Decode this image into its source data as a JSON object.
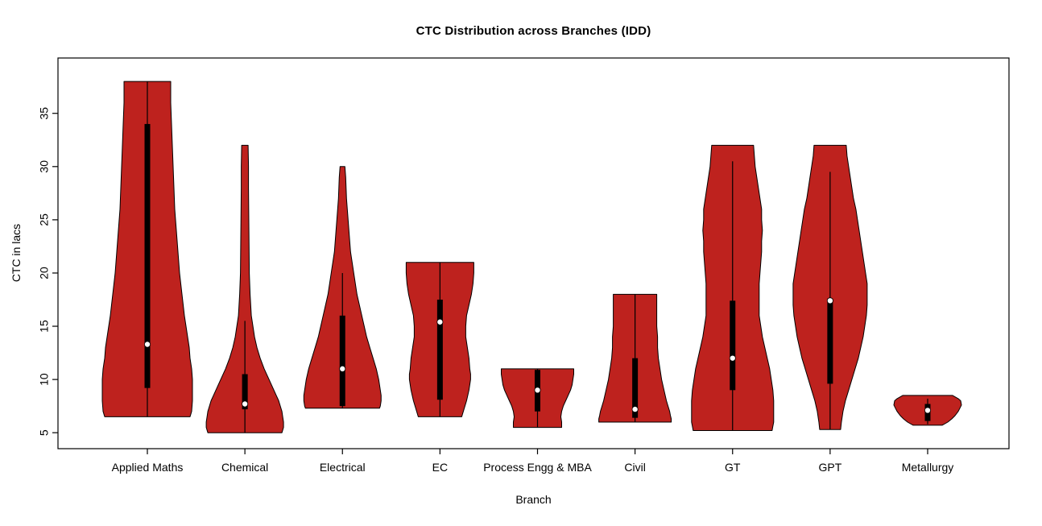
{
  "chart_data": {
    "type": "violin",
    "title": "CTC Distribution across Branches (IDD)",
    "xlabel": "Branch",
    "ylabel": "CTC in lacs",
    "ylim": [
      3.5,
      40.2
    ],
    "yticks": [
      5,
      10,
      15,
      20,
      25,
      30,
      35
    ],
    "grid": false,
    "violin_fill": "#BE221E",
    "categories": [
      "Applied Maths",
      "Chemical",
      "Electrical",
      "EC",
      "Process Engg & MBA",
      "Civil",
      "GT",
      "GPT",
      "Metallurgy"
    ],
    "violins": [
      {
        "category": "Applied Maths",
        "min": 6.5,
        "max": 38,
        "q1": 9.2,
        "q3": 34,
        "median": 13.3,
        "whisker_low": 6.5,
        "whisker_high": 38,
        "profile": [
          [
            6.5,
            53
          ],
          [
            7,
            55
          ],
          [
            8,
            56
          ],
          [
            9,
            56
          ],
          [
            10,
            56
          ],
          [
            11,
            55
          ],
          [
            12,
            53
          ],
          [
            13,
            52
          ],
          [
            14,
            50
          ],
          [
            15,
            48
          ],
          [
            16,
            46
          ],
          [
            18,
            43
          ],
          [
            20,
            40
          ],
          [
            22,
            38
          ],
          [
            24,
            36
          ],
          [
            26,
            34
          ],
          [
            28,
            33
          ],
          [
            30,
            32
          ],
          [
            32,
            31
          ],
          [
            34,
            30
          ],
          [
            36,
            29
          ],
          [
            38,
            29
          ]
        ]
      },
      {
        "category": "Chemical",
        "min": 5,
        "max": 32,
        "q1": 7.2,
        "q3": 10.5,
        "median": 7.7,
        "whisker_low": 5,
        "whisker_high": 15.5,
        "profile": [
          [
            5,
            46
          ],
          [
            5.5,
            48
          ],
          [
            6,
            48
          ],
          [
            6.5,
            47
          ],
          [
            7,
            46
          ],
          [
            7.5,
            44
          ],
          [
            8,
            42
          ],
          [
            8.5,
            39
          ],
          [
            9,
            36
          ],
          [
            9.5,
            33
          ],
          [
            10,
            30
          ],
          [
            11,
            24
          ],
          [
            12,
            19
          ],
          [
            13,
            15
          ],
          [
            14,
            12
          ],
          [
            15,
            10
          ],
          [
            16,
            8
          ],
          [
            18,
            6.5
          ],
          [
            20,
            5.5
          ],
          [
            24,
            5
          ],
          [
            28,
            4.5
          ],
          [
            30,
            4.5
          ],
          [
            32,
            4
          ]
        ]
      },
      {
        "category": "Electrical",
        "min": 7.3,
        "max": 30,
        "q1": 7.5,
        "q3": 16,
        "median": 11,
        "whisker_low": 7.3,
        "whisker_high": 20,
        "profile": [
          [
            7.3,
            46
          ],
          [
            7.5,
            47
          ],
          [
            8,
            48
          ],
          [
            8.5,
            48
          ],
          [
            9,
            47
          ],
          [
            10,
            45
          ],
          [
            11,
            42
          ],
          [
            12,
            38
          ],
          [
            13,
            34
          ],
          [
            14,
            30
          ],
          [
            15,
            27
          ],
          [
            16,
            24
          ],
          [
            17,
            21
          ],
          [
            18,
            18
          ],
          [
            19,
            16
          ],
          [
            20,
            14
          ],
          [
            21,
            12
          ],
          [
            22,
            10
          ],
          [
            23,
            9
          ],
          [
            24,
            8
          ],
          [
            25,
            7
          ],
          [
            26,
            6
          ],
          [
            27,
            5
          ],
          [
            28,
            4.5
          ],
          [
            29,
            4
          ],
          [
            30,
            3
          ]
        ]
      },
      {
        "category": "EC",
        "min": 6.5,
        "max": 21,
        "q1": 8.1,
        "q3": 17.5,
        "median": 15.4,
        "whisker_low": 6.5,
        "whisker_high": 21,
        "profile": [
          [
            6.5,
            27
          ],
          [
            7,
            29
          ],
          [
            8,
            33
          ],
          [
            9,
            36
          ],
          [
            10,
            38
          ],
          [
            10.5,
            38
          ],
          [
            11,
            37
          ],
          [
            12,
            36
          ],
          [
            13,
            34
          ],
          [
            14,
            32
          ],
          [
            15,
            32
          ],
          [
            16,
            33
          ],
          [
            17,
            36
          ],
          [
            18,
            39
          ],
          [
            19,
            41
          ],
          [
            20,
            42
          ],
          [
            21,
            42
          ]
        ]
      },
      {
        "category": "Process Engg & MBA",
        "min": 5.5,
        "max": 11,
        "q1": 7,
        "q3": 10.9,
        "median": 9,
        "whisker_low": 5.5,
        "whisker_high": 11,
        "profile": [
          [
            5.5,
            30
          ],
          [
            6,
            30
          ],
          [
            6.5,
            29
          ],
          [
            7,
            30
          ],
          [
            7.5,
            32
          ],
          [
            8,
            35
          ],
          [
            8.5,
            38
          ],
          [
            9,
            41
          ],
          [
            9.5,
            43
          ],
          [
            10,
            44
          ],
          [
            10.5,
            45
          ],
          [
            11,
            45
          ]
        ]
      },
      {
        "category": "Civil",
        "min": 6,
        "max": 18,
        "q1": 6.4,
        "q3": 12,
        "median": 7.2,
        "whisker_low": 6,
        "whisker_high": 18,
        "profile": [
          [
            6,
            45
          ],
          [
            6.3,
            45
          ],
          [
            6.6,
            44
          ],
          [
            7,
            43
          ],
          [
            7.5,
            41
          ],
          [
            8,
            39
          ],
          [
            9,
            36
          ],
          [
            10,
            33
          ],
          [
            11,
            31
          ],
          [
            12,
            29
          ],
          [
            13,
            28
          ],
          [
            14,
            28
          ],
          [
            15,
            27
          ],
          [
            16,
            27
          ],
          [
            17,
            27
          ],
          [
            18,
            27
          ]
        ]
      },
      {
        "category": "GT",
        "min": 5.2,
        "max": 32,
        "q1": 9,
        "q3": 17.4,
        "median": 12,
        "whisker_low": 5.2,
        "whisker_high": 30.5,
        "profile": [
          [
            5.2,
            49
          ],
          [
            5.6,
            50
          ],
          [
            6,
            51
          ],
          [
            7,
            51
          ],
          [
            8,
            51
          ],
          [
            9,
            50
          ],
          [
            10,
            48
          ],
          [
            11,
            46
          ],
          [
            12,
            43
          ],
          [
            13,
            40
          ],
          [
            14,
            37
          ],
          [
            15,
            35
          ],
          [
            16,
            33
          ],
          [
            17,
            33
          ],
          [
            18,
            33
          ],
          [
            19,
            33
          ],
          [
            20,
            34
          ],
          [
            21,
            35
          ],
          [
            22,
            36
          ],
          [
            23,
            36
          ],
          [
            24,
            37
          ],
          [
            25,
            36
          ],
          [
            26,
            36
          ],
          [
            27,
            34
          ],
          [
            28,
            32
          ],
          [
            29,
            30
          ],
          [
            30,
            28
          ],
          [
            31,
            27
          ],
          [
            32,
            26
          ]
        ]
      },
      {
        "category": "GPT",
        "min": 5.3,
        "max": 32,
        "q1": 9.6,
        "q3": 17.6,
        "median": 17.4,
        "whisker_low": 5.3,
        "whisker_high": 29.5,
        "profile": [
          [
            5.3,
            13
          ],
          [
            6,
            14
          ],
          [
            7,
            16
          ],
          [
            8,
            19
          ],
          [
            9,
            23
          ],
          [
            10,
            27
          ],
          [
            11,
            31
          ],
          [
            12,
            35
          ],
          [
            13,
            38
          ],
          [
            14,
            41
          ],
          [
            15,
            43
          ],
          [
            16,
            45
          ],
          [
            17,
            46
          ],
          [
            18,
            46
          ],
          [
            19,
            46
          ],
          [
            20,
            44
          ],
          [
            21,
            42
          ],
          [
            22,
            40
          ],
          [
            23,
            38
          ],
          [
            24,
            36
          ],
          [
            25,
            34
          ],
          [
            26,
            32
          ],
          [
            27,
            29
          ],
          [
            28,
            27
          ],
          [
            29,
            25
          ],
          [
            30,
            23
          ],
          [
            31,
            21
          ],
          [
            32,
            20
          ]
        ]
      },
      {
        "category": "Metallurgy",
        "min": 5.7,
        "max": 8.5,
        "q1": 6.1,
        "q3": 7.7,
        "median": 7.1,
        "whisker_low": 5.8,
        "whisker_high": 8.2,
        "profile": [
          [
            5.7,
            18
          ],
          [
            6,
            25
          ],
          [
            6.3,
            30
          ],
          [
            6.6,
            34
          ],
          [
            7,
            38
          ],
          [
            7.3,
            40
          ],
          [
            7.6,
            42
          ],
          [
            8,
            41
          ],
          [
            8.2,
            38
          ],
          [
            8.5,
            31
          ]
        ]
      }
    ]
  }
}
